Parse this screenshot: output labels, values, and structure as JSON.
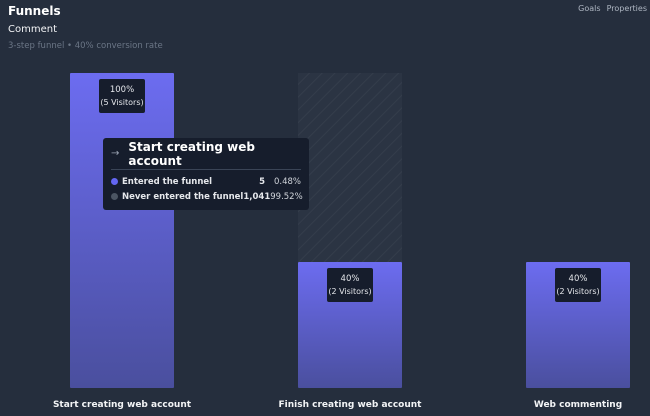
{
  "header": {
    "title": "Funnels",
    "links": [
      "Goals",
      "Properties"
    ],
    "funnel_name": "Comment",
    "funnel_subtitle": "3-step funnel • 40% conversion rate"
  },
  "colors": {
    "bar_top": "#6c6cf0",
    "bar_bottom": "#4a4f9e",
    "dropoff_hatch": "#343d4b",
    "dropoff_bg": "#2b3443",
    "label_bg": "#161d2c",
    "entered_dot": "#6366f1",
    "never_dot": "#4b5563"
  },
  "chart_data": {
    "type": "bar",
    "categories": [
      "Start creating web account",
      "Finish creating web account",
      "Web commenting"
    ],
    "values": [
      100,
      40,
      40
    ],
    "visitors": [
      5,
      2,
      2
    ],
    "dropoff": [
      0,
      60,
      0
    ],
    "value_labels": [
      "100%",
      "40%",
      "40%"
    ],
    "visitor_labels": [
      "(5 Visitors)",
      "(2 Visitors)",
      "(2 Visitors)"
    ],
    "ylim": [
      0,
      100
    ]
  },
  "tooltip": {
    "arrow_icon": "→",
    "title": "Start creating web account",
    "rows": [
      {
        "label": "Entered the funnel",
        "count": "5",
        "pct": "0.48%"
      },
      {
        "label": "Never entered the funnel",
        "count": "1,041",
        "pct": "99.52%"
      }
    ]
  }
}
